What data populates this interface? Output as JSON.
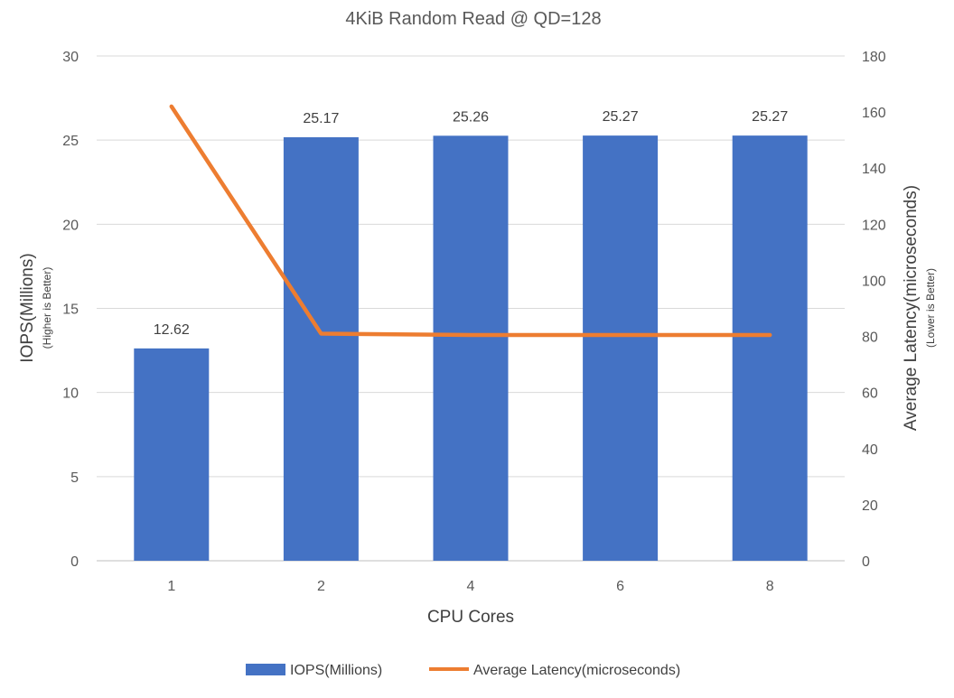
{
  "chart_data": {
    "type": "bar",
    "title": "4KiB Random Read @ QD=128",
    "categories": [
      "1",
      "2",
      "4",
      "6",
      "8"
    ],
    "xlabel": "CPU Cores",
    "y_left": {
      "label": "IOPS(Millions)",
      "sublabel": "(Higher is Better)",
      "lim": [
        0,
        30
      ],
      "ticks": [
        0,
        5,
        10,
        15,
        20,
        25,
        30
      ]
    },
    "y_right": {
      "label": "Average Latency(microseconds)",
      "sublabel": "(Lower is Better)",
      "lim": [
        0,
        180
      ],
      "ticks": [
        0,
        20,
        40,
        60,
        80,
        100,
        120,
        140,
        160,
        180
      ]
    },
    "series": [
      {
        "name": "IOPS(Millions)",
        "type": "bar",
        "axis": "left",
        "color": "#4472C4",
        "values": [
          12.62,
          25.17,
          25.26,
          25.27,
          25.27
        ],
        "data_labels": [
          "12.62",
          "25.17",
          "25.26",
          "25.27",
          "25.27"
        ]
      },
      {
        "name": "Average Latency(microseconds)",
        "type": "line",
        "axis": "right",
        "color": "#ED7D31",
        "values": [
          162,
          81,
          80.5,
          80.5,
          80.5
        ]
      }
    ],
    "grid": true,
    "legend": "bottom"
  }
}
